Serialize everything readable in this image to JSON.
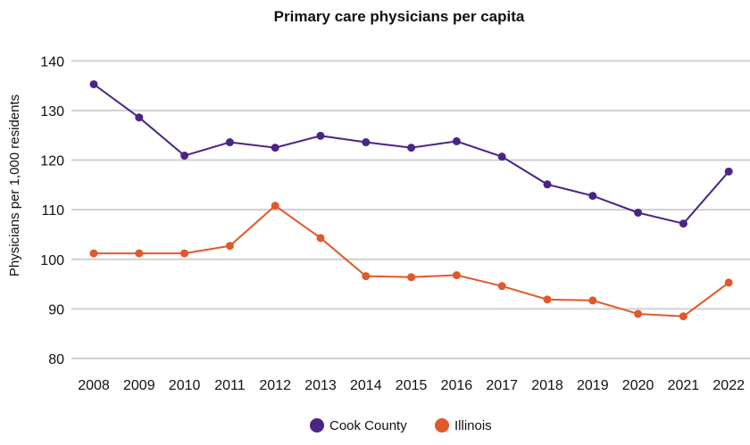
{
  "chart_data": {
    "type": "line",
    "title": "Primary care physicians per capita",
    "xlabel": "",
    "ylabel": "Physicians per 1,000 residents",
    "ylim": [
      80,
      140
    ],
    "yticks": [
      80,
      90,
      100,
      110,
      120,
      130,
      140
    ],
    "grid": true,
    "legend_position": "bottom",
    "categories": [
      "2008",
      "2009",
      "2010",
      "2011",
      "2012",
      "2013",
      "2014",
      "2015",
      "2016",
      "2017",
      "2018",
      "2019",
      "2020",
      "2021",
      "2022"
    ],
    "series": [
      {
        "name": "Cook County",
        "color": "#4b2583",
        "values": [
          135.3,
          128.6,
          120.9,
          123.6,
          122.5,
          124.9,
          123.6,
          122.5,
          123.8,
          120.7,
          115.1,
          112.8,
          109.4,
          107.2,
          117.7
        ]
      },
      {
        "name": "Illinois",
        "color": "#e0592a",
        "values": [
          101.2,
          101.2,
          101.2,
          102.7,
          110.8,
          104.3,
          96.6,
          96.4,
          96.8,
          94.6,
          91.9,
          91.7,
          89.0,
          88.5,
          95.3
        ]
      }
    ]
  }
}
